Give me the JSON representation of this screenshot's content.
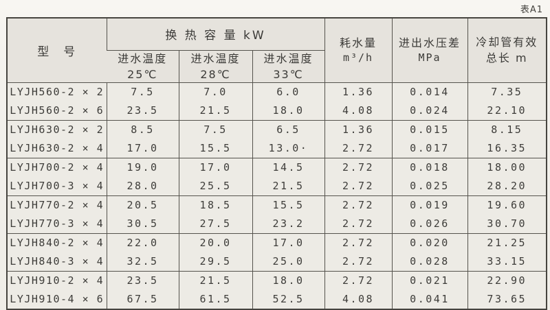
{
  "page": {
    "label": "表A1"
  },
  "table": {
    "header": {
      "model": "型　号",
      "capacity_group": "换 热 容 量 kW",
      "capacity_cols": [
        {
          "line1": "进水温度",
          "line2": "25℃"
        },
        {
          "line1": "进水温度",
          "line2": "28℃"
        },
        {
          "line1": "进水温度",
          "line2": "33℃"
        }
      ],
      "water": {
        "line1": "耗水量",
        "line2": "m³/h"
      },
      "pressure": {
        "line1": "进出水压差",
        "line2": "MPa"
      },
      "length": {
        "line1": "冷却管有效",
        "line2": "总长 m"
      }
    },
    "field_order": [
      "model",
      "c25",
      "c28",
      "c33",
      "water",
      "pressure",
      "length"
    ],
    "rows": [
      {
        "model": "LYJH560-2 × 2",
        "c25": "7.5",
        "c28": "7.0",
        "c33": "6.0",
        "water": "1.36",
        "pressure": "0.014",
        "length": "7.35"
      },
      {
        "model": "LYJH560-2 × 6",
        "c25": "23.5",
        "c28": "21.5",
        "c33": "18.0",
        "water": "4.08",
        "pressure": "0.024",
        "length": "22.10"
      },
      {
        "model": "LYJH630-2 × 2",
        "c25": "8.5",
        "c28": "7.5",
        "c33": "6.5",
        "water": "1.36",
        "pressure": "0.015",
        "length": "8.15"
      },
      {
        "model": "LYJH630-2 × 4",
        "c25": "17.0",
        "c28": "15.5",
        "c33": "13.0·",
        "water": "2.72",
        "pressure": "0.017",
        "length": "16.35"
      },
      {
        "model": "LYJH700-2 × 4",
        "c25": "19.0",
        "c28": "17.0",
        "c33": "14.5",
        "water": "2.72",
        "pressure": "0.018",
        "length": "18.00"
      },
      {
        "model": "LYJH700-3 × 4",
        "c25": "28.0",
        "c28": "25.5",
        "c33": "21.5",
        "water": "2.72",
        "pressure": "0.025",
        "length": "28.20"
      },
      {
        "model": "LYJH770-2 × 4",
        "c25": "20.5",
        "c28": "18.5",
        "c33": "15.5",
        "water": "2.72",
        "pressure": "0.019",
        "length": "19.60"
      },
      {
        "model": "LYJH770-3 × 4",
        "c25": "30.5",
        "c28": "27.5",
        "c33": "23.2",
        "water": "2.72",
        "pressure": "0.026",
        "length": "30.70"
      },
      {
        "model": "LYJH840-2 × 4",
        "c25": "22.0",
        "c28": "20.0",
        "c33": "17.0",
        "water": "2.72",
        "pressure": "0.020",
        "length": "21.25"
      },
      {
        "model": "LYJH840-3 × 4",
        "c25": "32.5",
        "c28": "29.5",
        "c33": "25.0",
        "water": "2.72",
        "pressure": "0.028",
        "length": "33.15"
      },
      {
        "model": "LYJH910-2 × 4",
        "c25": "23.5",
        "c28": "21.5",
        "c33": "18.0",
        "water": "2.72",
        "pressure": "0.021",
        "length": "22.90"
      },
      {
        "model": "LYJH910-4 × 6",
        "c25": "67.5",
        "c28": "61.5",
        "c33": "52.5",
        "water": "4.08",
        "pressure": "0.041",
        "length": "73.65"
      }
    ]
  },
  "colors": {
    "page_bg": "#f3f1ec",
    "header_bg": "#e6e3dd",
    "cell_bg": "#edebe5",
    "line": "#54524c",
    "outer_line": "#45433e",
    "text": "#3b3a37"
  }
}
